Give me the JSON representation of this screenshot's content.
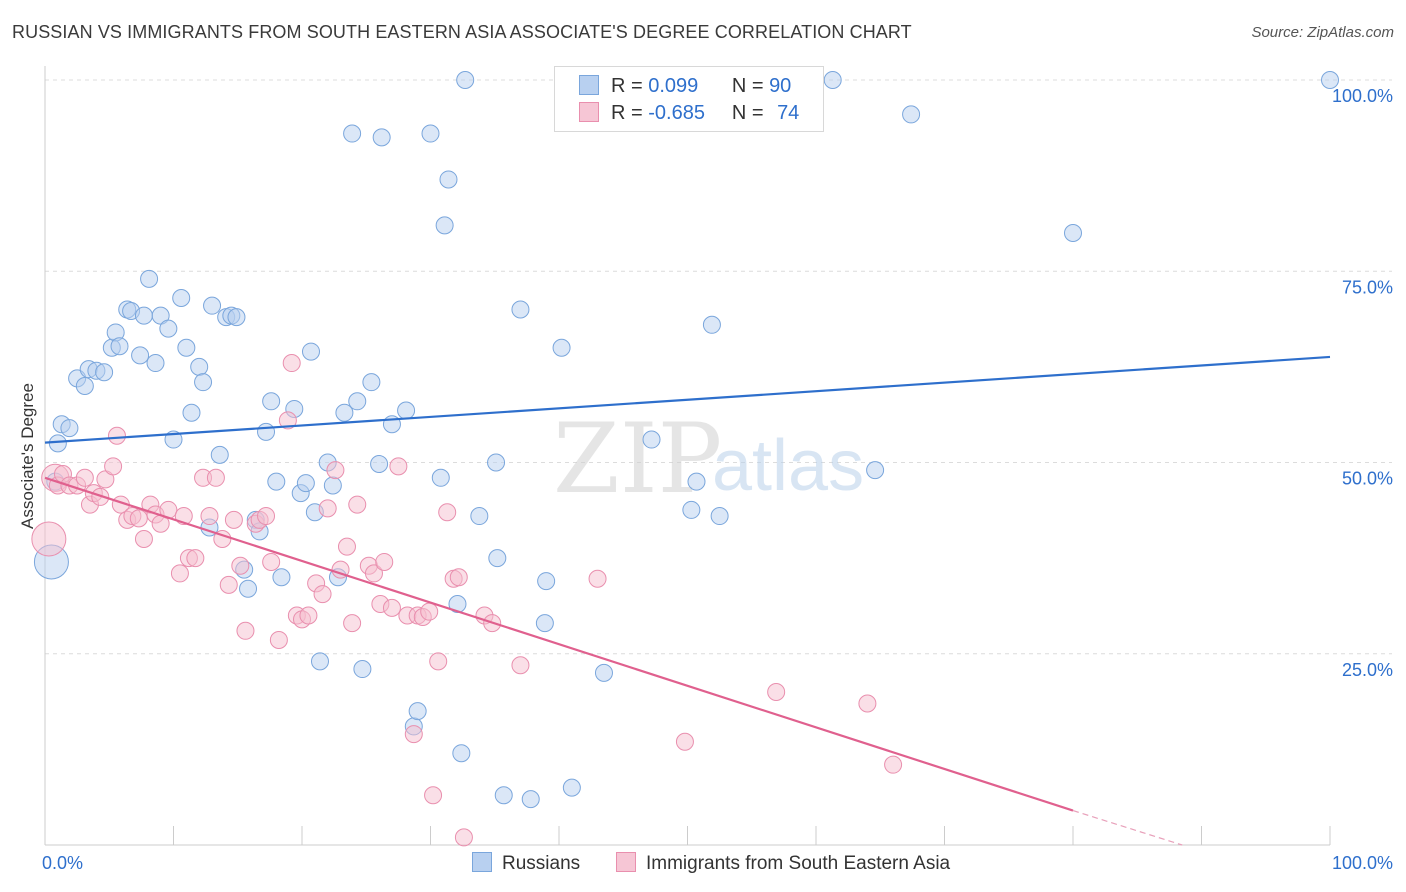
{
  "title": "RUSSIAN VS IMMIGRANTS FROM SOUTH EASTERN ASIA ASSOCIATE'S DEGREE CORRELATION CHART",
  "source": "Source: ZipAtlas.com",
  "watermark": {
    "zip": "ZIP",
    "atlas": "atlas"
  },
  "colors": {
    "blue": "#2e6fcc",
    "blue_fill": "#b8d0f0",
    "pink": "#e0608e",
    "pink_fill": "#f6bfd0",
    "axis_text": "#2e6fcc"
  },
  "legend": {
    "r_label": "R =",
    "n_label": "N =",
    "rows": [
      {
        "r": " 0.099",
        "n": "90"
      },
      {
        "r": "-0.685",
        "n": "74"
      }
    ]
  },
  "chart_data": {
    "type": "scatter",
    "title": "RUSSIAN VS IMMIGRANTS FROM SOUTH EASTERN ASIA ASSOCIATE'S DEGREE CORRELATION CHART",
    "xlabel": "",
    "ylabel": "Associate's Degree",
    "xlim": [
      0,
      100
    ],
    "ylim": [
      0,
      102
    ],
    "x_tick_labels": [
      "0.0%",
      "100.0%"
    ],
    "y_tick_labels": [
      "100.0%",
      "75.0%",
      "50.0%",
      "25.0%"
    ],
    "y_tick_values": [
      100,
      75,
      50,
      25
    ],
    "grid": true,
    "legend_position": "top-center",
    "series": [
      {
        "name": "Russians",
        "color": "#2e6fcc",
        "trend": {
          "x": [
            0,
            100
          ],
          "y": [
            52.6,
            63.8
          ]
        },
        "points": [
          [
            0.5,
            37.0,
            2
          ],
          [
            0.8,
            47.5,
            1
          ],
          [
            1.0,
            52.5,
            1
          ],
          [
            1.3,
            55.0,
            1
          ],
          [
            1.9,
            54.5,
            1
          ],
          [
            2.5,
            61.0,
            1
          ],
          [
            3.1,
            60.0,
            1
          ],
          [
            3.4,
            62.2,
            1
          ],
          [
            4.0,
            62.0,
            1
          ],
          [
            4.6,
            61.8,
            1
          ],
          [
            5.2,
            65.0,
            1
          ],
          [
            5.5,
            67.0,
            1
          ],
          [
            5.8,
            65.2,
            1
          ],
          [
            6.4,
            70.0,
            1
          ],
          [
            6.7,
            69.8,
            1
          ],
          [
            7.4,
            64.0,
            1
          ],
          [
            7.7,
            69.2,
            1
          ],
          [
            8.1,
            74.0,
            1
          ],
          [
            8.6,
            63.0,
            1
          ],
          [
            9.0,
            69.2,
            1
          ],
          [
            9.6,
            67.5,
            1
          ],
          [
            10.0,
            53.0,
            1
          ],
          [
            10.6,
            71.5,
            1
          ],
          [
            11.0,
            65.0,
            1
          ],
          [
            11.4,
            56.5,
            1
          ],
          [
            12.0,
            62.5,
            1
          ],
          [
            12.3,
            60.5,
            1
          ],
          [
            12.8,
            41.5,
            1
          ],
          [
            13.0,
            70.5,
            1
          ],
          [
            13.6,
            51.0,
            1
          ],
          [
            14.1,
            69.0,
            1
          ],
          [
            14.5,
            69.2,
            1
          ],
          [
            14.9,
            69.0,
            1
          ],
          [
            15.5,
            36.0,
            1
          ],
          [
            15.8,
            33.5,
            1
          ],
          [
            16.4,
            42.5,
            1
          ],
          [
            16.7,
            41.0,
            1
          ],
          [
            17.2,
            54.0,
            1
          ],
          [
            17.6,
            58.0,
            1
          ],
          [
            18.0,
            47.5,
            1
          ],
          [
            18.4,
            35.0,
            1
          ],
          [
            19.4,
            57.0,
            1
          ],
          [
            19.9,
            46.0,
            1
          ],
          [
            20.3,
            47.3,
            1
          ],
          [
            20.7,
            64.5,
            1
          ],
          [
            21.0,
            43.5,
            1
          ],
          [
            21.4,
            24.0,
            1
          ],
          [
            22.0,
            50.0,
            1
          ],
          [
            22.4,
            47.0,
            1
          ],
          [
            22.8,
            35.0,
            1
          ],
          [
            23.3,
            56.5,
            1
          ],
          [
            23.9,
            93.0,
            1
          ],
          [
            24.3,
            58.0,
            1
          ],
          [
            24.7,
            23.0,
            1
          ],
          [
            25.4,
            60.5,
            1
          ],
          [
            26.0,
            49.8,
            1
          ],
          [
            26.2,
            92.5,
            1
          ],
          [
            27.0,
            55.0,
            1
          ],
          [
            28.1,
            56.8,
            1
          ],
          [
            28.7,
            15.5,
            1
          ],
          [
            29.0,
            17.5,
            1
          ],
          [
            30.0,
            93.0,
            1
          ],
          [
            30.8,
            48.0,
            1
          ],
          [
            31.4,
            87.0,
            1
          ],
          [
            31.1,
            81.0,
            1
          ],
          [
            32.1,
            31.5,
            1
          ],
          [
            32.4,
            12.0,
            1
          ],
          [
            32.7,
            100.0,
            1
          ],
          [
            33.8,
            43.0,
            1
          ],
          [
            35.1,
            50.0,
            1
          ],
          [
            35.2,
            37.5,
            1
          ],
          [
            35.7,
            6.5,
            1
          ],
          [
            37.0,
            70.0,
            1
          ],
          [
            37.8,
            6.0,
            1
          ],
          [
            38.9,
            29.0,
            1
          ],
          [
            39.0,
            34.5,
            1
          ],
          [
            40.2,
            65.0,
            1
          ],
          [
            41.0,
            7.5,
            1
          ],
          [
            43.5,
            22.5,
            1
          ],
          [
            47.2,
            53.0,
            1
          ],
          [
            50.3,
            43.8,
            1
          ],
          [
            50.7,
            47.5,
            1
          ],
          [
            51.9,
            68.0,
            1
          ],
          [
            52.5,
            43.0,
            1
          ],
          [
            59.5,
            100.0,
            1
          ],
          [
            61.3,
            100.0,
            1
          ],
          [
            64.6,
            49.0,
            1
          ],
          [
            67.4,
            95.5,
            1
          ],
          [
            80.0,
            80.0,
            1
          ],
          [
            100.0,
            100.0,
            1
          ]
        ]
      },
      {
        "name": "Immigrants from South Eastern Asia",
        "color": "#e0608e",
        "trend": {
          "x": [
            0,
            80
          ],
          "y": [
            48.0,
            4.5
          ]
        },
        "trend_dashed": {
          "x": [
            80,
            88.5
          ],
          "y": [
            4.5,
            0
          ]
        },
        "points": [
          [
            0.3,
            40.0,
            2
          ],
          [
            0.8,
            48.0,
            1.6
          ],
          [
            1.0,
            47.0,
            1
          ],
          [
            1.4,
            48.5,
            1
          ],
          [
            1.9,
            47.0,
            1
          ],
          [
            2.5,
            47.0,
            1
          ],
          [
            3.1,
            48.0,
            1
          ],
          [
            3.5,
            44.5,
            1
          ],
          [
            3.8,
            46.0,
            1
          ],
          [
            4.3,
            45.5,
            1
          ],
          [
            4.7,
            47.8,
            1
          ],
          [
            5.3,
            49.5,
            1
          ],
          [
            5.6,
            53.5,
            1
          ],
          [
            5.9,
            44.5,
            1
          ],
          [
            6.4,
            42.5,
            1
          ],
          [
            6.8,
            43.0,
            1
          ],
          [
            7.3,
            42.7,
            1
          ],
          [
            7.7,
            40.0,
            1
          ],
          [
            8.2,
            44.5,
            1
          ],
          [
            8.6,
            43.2,
            1
          ],
          [
            9.0,
            42.0,
            1
          ],
          [
            9.6,
            43.8,
            1
          ],
          [
            10.5,
            35.5,
            1
          ],
          [
            10.8,
            43.0,
            1
          ],
          [
            11.2,
            37.5,
            1
          ],
          [
            11.7,
            37.5,
            1
          ],
          [
            12.3,
            48.0,
            1
          ],
          [
            12.8,
            43.0,
            1
          ],
          [
            13.3,
            48.0,
            1
          ],
          [
            13.8,
            40.0,
            1
          ],
          [
            14.3,
            34.0,
            1
          ],
          [
            14.7,
            42.5,
            1
          ],
          [
            15.2,
            36.5,
            1
          ],
          [
            15.6,
            28.0,
            1
          ],
          [
            16.4,
            42.0,
            1
          ],
          [
            16.7,
            42.5,
            1
          ],
          [
            17.2,
            43.0,
            1
          ],
          [
            17.6,
            37.0,
            1
          ],
          [
            18.2,
            26.8,
            1
          ],
          [
            18.9,
            55.5,
            1
          ],
          [
            19.2,
            63.0,
            1
          ],
          [
            19.6,
            30.0,
            1
          ],
          [
            20.0,
            29.5,
            1
          ],
          [
            20.5,
            30.0,
            1
          ],
          [
            21.1,
            34.2,
            1
          ],
          [
            21.6,
            32.8,
            1
          ],
          [
            22.0,
            44.0,
            1
          ],
          [
            22.6,
            49.0,
            1
          ],
          [
            23.0,
            36.0,
            1
          ],
          [
            23.5,
            39.0,
            1
          ],
          [
            23.9,
            29.0,
            1
          ],
          [
            24.3,
            44.5,
            1
          ],
          [
            25.2,
            36.5,
            1
          ],
          [
            25.6,
            35.5,
            1
          ],
          [
            26.1,
            31.5,
            1
          ],
          [
            26.4,
            37.0,
            1
          ],
          [
            27.0,
            31.0,
            1
          ],
          [
            27.5,
            49.5,
            1
          ],
          [
            28.2,
            30.0,
            1
          ],
          [
            28.7,
            14.5,
            1
          ],
          [
            29.0,
            30.0,
            1
          ],
          [
            29.4,
            29.8,
            1
          ],
          [
            29.9,
            30.5,
            1
          ],
          [
            30.2,
            6.5,
            1
          ],
          [
            30.6,
            24.0,
            1
          ],
          [
            31.3,
            43.5,
            1
          ],
          [
            31.8,
            34.8,
            1
          ],
          [
            32.2,
            35.0,
            1
          ],
          [
            32.6,
            1.0,
            1
          ],
          [
            34.2,
            30.0,
            1
          ],
          [
            34.8,
            29.0,
            1
          ],
          [
            37.0,
            23.5,
            1
          ],
          [
            43.0,
            34.8,
            1
          ],
          [
            49.8,
            13.5,
            1
          ],
          [
            56.9,
            20.0,
            1
          ],
          [
            64.0,
            18.5,
            1
          ],
          [
            66.0,
            10.5,
            1
          ]
        ]
      }
    ]
  }
}
